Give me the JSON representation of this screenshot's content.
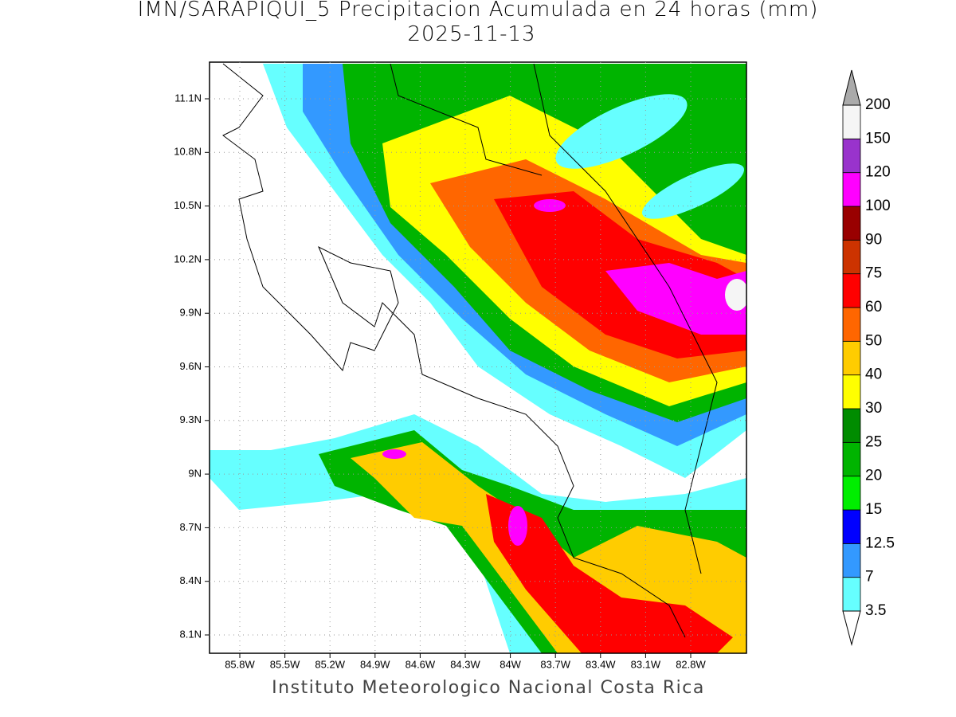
{
  "header": {
    "title": "IMN/SARAPIQUI_5 Precipitacion Acumulada en 24 horas (mm)",
    "date": "2025-11-13"
  },
  "map": {
    "lon_ticks": [
      "85.8W",
      "85.5W",
      "85.2W",
      "84.9W",
      "84.6W",
      "84.3W",
      "84W",
      "83.7W",
      "83.4W",
      "83.1W",
      "82.8W"
    ],
    "lat_ticks": [
      "11.1N",
      "10.8N",
      "10.5N",
      "10.2N",
      "9.9N",
      "9.6N",
      "9.3N",
      "9N",
      "8.7N",
      "8.4N",
      "8.1N"
    ]
  },
  "colorbar": {
    "levels": [
      3.5,
      7,
      12.5,
      15,
      20,
      25,
      30,
      40,
      50,
      60,
      75,
      90,
      100,
      120,
      150,
      200
    ],
    "colors": [
      "#66ffff",
      "#3399ff",
      "#0000ff",
      "#00ee00",
      "#00b400",
      "#008c00",
      "#ffff00",
      "#ffcc00",
      "#ff6600",
      "#ff0000",
      "#cc3300",
      "#990000",
      "#ff00ff",
      "#9933cc",
      "#f5f5f5"
    ],
    "under_color": "#ffffff",
    "over_color": "#aaaaaa"
  },
  "footer": "Instituto Meteorologico Nacional Costa Rica"
}
